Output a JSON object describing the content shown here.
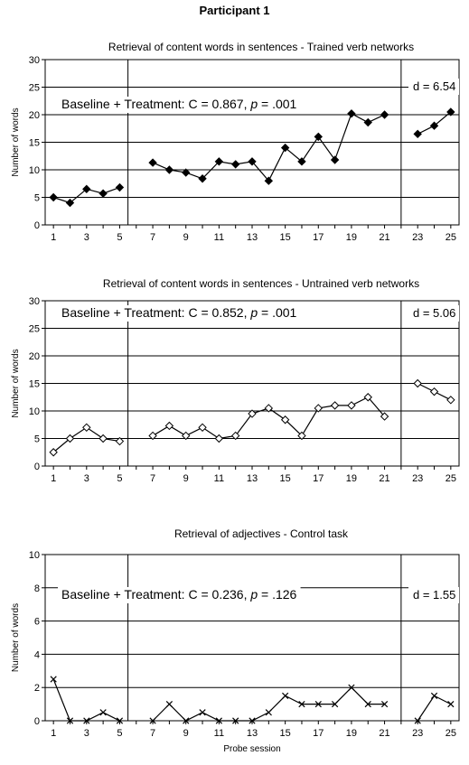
{
  "figure": {
    "title": "Participant 1",
    "x_label": "Probe session",
    "y_label": "Number of words"
  },
  "chart_data": [
    {
      "type": "line",
      "title": "Retrieval of content words in sentences - Trained verb networks",
      "xlabel": "",
      "ylabel": "Number of words",
      "marker": "filled-diamond",
      "ylim": [
        0,
        30
      ],
      "yticks": [
        0,
        5,
        10,
        15,
        20,
        25,
        30
      ],
      "xlim": [
        0.5,
        25.5
      ],
      "xticks": [
        1,
        3,
        5,
        7,
        9,
        11,
        13,
        15,
        17,
        19,
        21,
        23,
        25
      ],
      "phase_lines_after": [
        5.5,
        22
      ],
      "annotation": "Baseline + Treatment: C = 0.867, ",
      "annotation_p": "p",
      "annotation_tail": " = .001",
      "effect_size": "d = 6.54",
      "grid": true,
      "segments": [
        {
          "x": [
            1,
            2,
            3,
            4,
            5
          ],
          "y": [
            5,
            4,
            6.5,
            5.7,
            6.8
          ]
        },
        {
          "x": [
            7,
            8,
            9,
            10,
            11,
            12,
            13,
            14,
            15,
            16,
            17,
            18,
            19,
            20,
            21
          ],
          "y": [
            11.3,
            10,
            9.5,
            8.4,
            11.5,
            11,
            11.5,
            8,
            14,
            11.5,
            16,
            11.8,
            20.2,
            18.6,
            20
          ]
        },
        {
          "x": [
            23,
            24,
            25
          ],
          "y": [
            16.5,
            18,
            20.5
          ]
        }
      ]
    },
    {
      "type": "line",
      "title": "Retrieval of content words in sentences - Untrained verb networks",
      "xlabel": "",
      "ylabel": "Number of words",
      "marker": "open-diamond",
      "ylim": [
        0,
        30
      ],
      "yticks": [
        0,
        5,
        10,
        15,
        20,
        25,
        30
      ],
      "xlim": [
        0.5,
        25.5
      ],
      "xticks": [
        1,
        3,
        5,
        7,
        9,
        11,
        13,
        15,
        17,
        19,
        21,
        23,
        25
      ],
      "phase_lines_after": [
        5.5,
        22
      ],
      "annotation": "Baseline + Treatment: C = 0.852, ",
      "annotation_p": "p",
      "annotation_tail": " = .001",
      "effect_size": "d = 5.06",
      "grid": true,
      "segments": [
        {
          "x": [
            1,
            2,
            3,
            4,
            5
          ],
          "y": [
            2.5,
            5,
            7,
            5,
            4.5
          ]
        },
        {
          "x": [
            7,
            8,
            9,
            10,
            11,
            12,
            13,
            14,
            15,
            16,
            17,
            18,
            19,
            20,
            21
          ],
          "y": [
            5.5,
            7.3,
            5.5,
            7,
            5,
            5.5,
            9.5,
            10.5,
            8.4,
            5.5,
            10.5,
            11,
            11,
            12.5,
            9
          ]
        },
        {
          "x": [
            23,
            24,
            25
          ],
          "y": [
            15,
            13.5,
            12
          ]
        }
      ]
    },
    {
      "type": "line",
      "title": "Retrieval of adjectives - Control task",
      "xlabel": "Probe session",
      "ylabel": "Number of words",
      "marker": "x",
      "ylim": [
        0,
        10
      ],
      "yticks": [
        0,
        2,
        4,
        6,
        8,
        10
      ],
      "xlim": [
        0.5,
        25.5
      ],
      "xticks": [
        1,
        3,
        5,
        7,
        9,
        11,
        13,
        15,
        17,
        19,
        21,
        23,
        25
      ],
      "phase_lines_after": [
        5.5,
        22
      ],
      "annotation": "Baseline + Treatment: C = 0.236, ",
      "annotation_p": "p",
      "annotation_tail": " = .126",
      "effect_size": "d = 1.55",
      "grid": true,
      "segments": [
        {
          "x": [
            1,
            2,
            3,
            4,
            5
          ],
          "y": [
            2.5,
            0,
            0,
            0.5,
            0
          ]
        },
        {
          "x": [
            7,
            8,
            9,
            10,
            11,
            12,
            13,
            14,
            15,
            16,
            17,
            18,
            19,
            20,
            21
          ],
          "y": [
            0,
            1,
            0,
            0.5,
            0,
            0,
            0,
            0.5,
            1.5,
            1,
            1,
            1,
            2,
            1,
            1
          ]
        },
        {
          "x": [
            23,
            24,
            25
          ],
          "y": [
            0,
            1.5,
            1
          ]
        }
      ]
    }
  ]
}
